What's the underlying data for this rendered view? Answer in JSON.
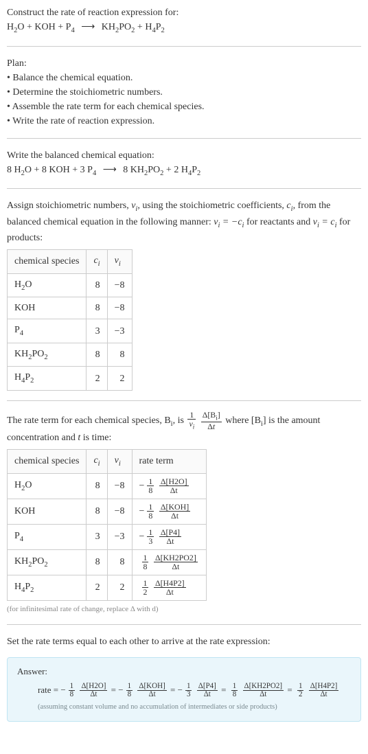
{
  "prompt": {
    "line1": "Construct the rate of reaction expression for:",
    "equation_lhs": [
      "H_2O",
      "KOH",
      "P_4"
    ],
    "equation_rhs": [
      "KH_2PO_2",
      "H_4P_2"
    ]
  },
  "plan": {
    "heading": "Plan:",
    "items": [
      "Balance the chemical equation.",
      "Determine the stoichiometric numbers.",
      "Assemble the rate term for each chemical species.",
      "Write the rate of reaction expression."
    ]
  },
  "balanced": {
    "heading": "Write the balanced chemical equation:",
    "lhs": [
      {
        "coef": "8",
        "species": "H_2O"
      },
      {
        "coef": "8",
        "species": "KOH"
      },
      {
        "coef": "3",
        "species": "P_4"
      }
    ],
    "rhs": [
      {
        "coef": "8",
        "species": "KH_2PO_2"
      },
      {
        "coef": "2",
        "species": "H_4P_2"
      }
    ]
  },
  "stoich_intro": {
    "text_a": "Assign stoichiometric numbers, ",
    "nu_i": "ν_i",
    "text_b": ", using the stoichiometric coefficients, ",
    "c_i": "c_i",
    "text_c": ", from the balanced chemical equation in the following manner: ",
    "rel_reactants": "ν_i = −c_i",
    "text_d": " for reactants and ",
    "rel_products": "ν_i = c_i",
    "text_e": " for products:"
  },
  "table1": {
    "headers": [
      "chemical species",
      "c_i",
      "ν_i"
    ],
    "rows": [
      {
        "species": "H_2O",
        "c": "8",
        "nu": "−8"
      },
      {
        "species": "KOH",
        "c": "8",
        "nu": "−8"
      },
      {
        "species": "P_4",
        "c": "3",
        "nu": "−3"
      },
      {
        "species": "KH_2PO_2",
        "c": "8",
        "nu": "8"
      },
      {
        "species": "H_4P_2",
        "c": "2",
        "nu": "2"
      }
    ]
  },
  "rate_term_intro": {
    "text_a": "The rate term for each chemical species, ",
    "B_i": "B_i",
    "text_b": ", is ",
    "frac1_num": "1",
    "frac1_den": "ν_i",
    "frac2_num": "Δ[B_i]",
    "frac2_den": "Δt",
    "text_c": " where ",
    "conc": "[B_i]",
    "text_d": " is the amount concentration and ",
    "t_var": "t",
    "text_e": " is time:"
  },
  "table2": {
    "headers": [
      "chemical species",
      "c_i",
      "ν_i",
      "rate term"
    ],
    "rows": [
      {
        "species": "H_2O",
        "c": "8",
        "nu": "−8",
        "sign": "−",
        "coef_num": "1",
        "coef_den": "8",
        "d_num": "Δ[H2O]",
        "d_den": "Δt"
      },
      {
        "species": "KOH",
        "c": "8",
        "nu": "−8",
        "sign": "−",
        "coef_num": "1",
        "coef_den": "8",
        "d_num": "Δ[KOH]",
        "d_den": "Δt"
      },
      {
        "species": "P_4",
        "c": "3",
        "nu": "−3",
        "sign": "−",
        "coef_num": "1",
        "coef_den": "3",
        "d_num": "Δ[P4]",
        "d_den": "Δt"
      },
      {
        "species": "KH_2PO_2",
        "c": "8",
        "nu": "8",
        "sign": "",
        "coef_num": "1",
        "coef_den": "8",
        "d_num": "Δ[KH2PO2]",
        "d_den": "Δt"
      },
      {
        "species": "H_4P_2",
        "c": "2",
        "nu": "2",
        "sign": "",
        "coef_num": "1",
        "coef_den": "2",
        "d_num": "Δ[H4P2]",
        "d_den": "Δt"
      }
    ],
    "caption": "(for infinitesimal rate of change, replace Δ with d)"
  },
  "set_equal": "Set the rate terms equal to each other to arrive at the rate expression:",
  "answer": {
    "label": "Answer:",
    "lead": "rate = ",
    "terms": [
      {
        "sign": "−",
        "coef_num": "1",
        "coef_den": "8",
        "d_num": "Δ[H2O]",
        "d_den": "Δt"
      },
      {
        "sign": "−",
        "coef_num": "1",
        "coef_den": "8",
        "d_num": "Δ[KOH]",
        "d_den": "Δt"
      },
      {
        "sign": "−",
        "coef_num": "1",
        "coef_den": "3",
        "d_num": "Δ[P4]",
        "d_den": "Δt"
      },
      {
        "sign": "",
        "coef_num": "1",
        "coef_den": "8",
        "d_num": "Δ[KH2PO2]",
        "d_den": "Δt"
      },
      {
        "sign": "",
        "coef_num": "1",
        "coef_den": "2",
        "d_num": "Δ[H4P2]",
        "d_den": "Δt"
      }
    ],
    "eq": " = ",
    "note": "(assuming constant volume and no accumulation of intermediates or side products)"
  },
  "arrow_glyph": "⟶",
  "colors": {
    "text": "#333333",
    "divider": "#cccccc",
    "table_border": "#cccccc",
    "caption": "#888888",
    "answer_bg": "#eaf6fb",
    "answer_border": "#bfe4f2",
    "answer_note": "#7a8a90"
  }
}
